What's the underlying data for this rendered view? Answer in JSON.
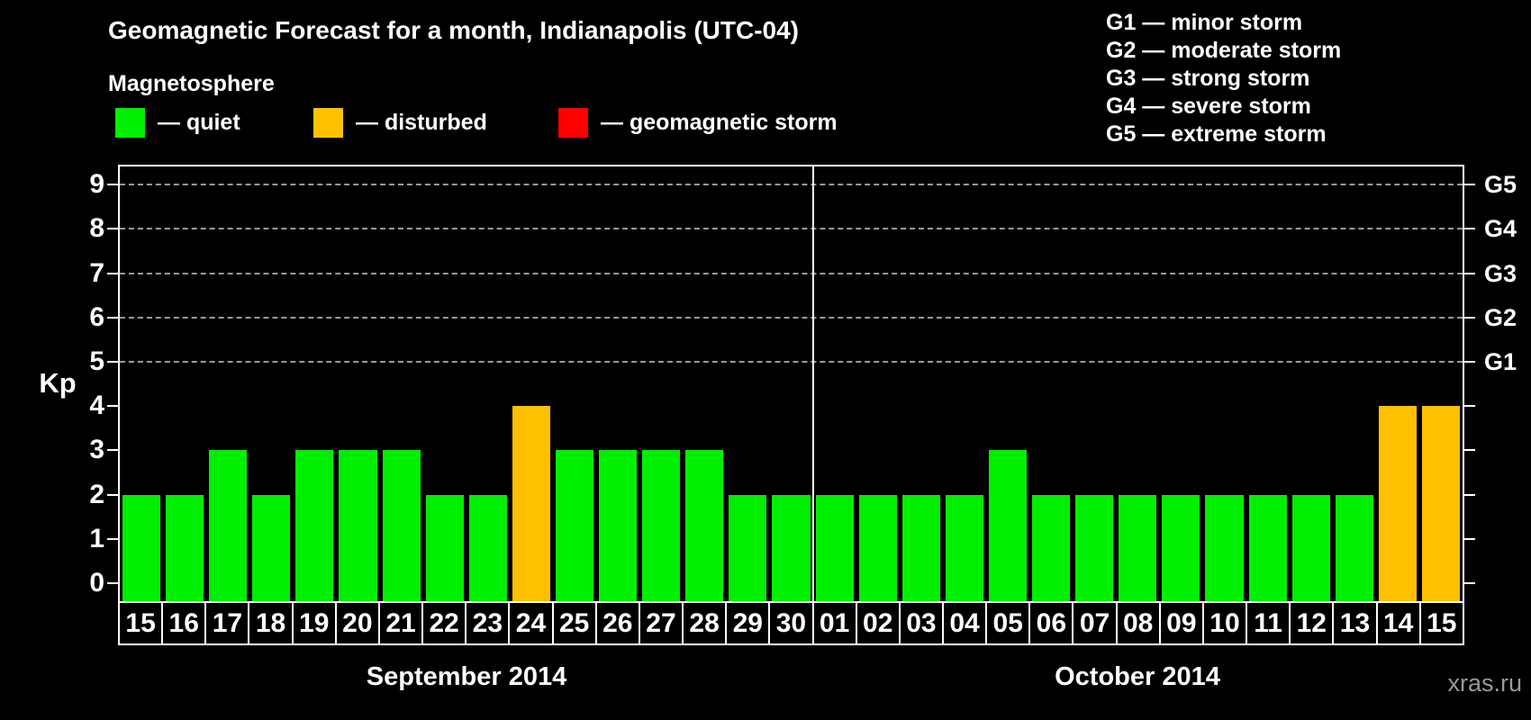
{
  "title": "Geomagnetic Forecast for a month, Indianapolis (UTC-04)",
  "subtitle": "Magnetosphere",
  "legend": {
    "items": [
      {
        "name": "quiet",
        "label": "— quiet",
        "color": "#00ef00"
      },
      {
        "name": "disturbed",
        "label": "— disturbed",
        "color": "#ffc000"
      },
      {
        "name": "storm",
        "label": "— geomagnetic storm",
        "color": "#ff0000"
      }
    ]
  },
  "g_legend": [
    "G1 — minor storm",
    "G2 — moderate storm",
    "G3 — strong storm",
    "G4 — severe storm",
    "G5 — extreme storm"
  ],
  "watermark": "xras.ru",
  "chart_data": {
    "type": "bar",
    "title": "Geomagnetic Forecast for a month, Indianapolis (UTC-04)",
    "xlabel": "",
    "ylabel": "Kp",
    "ylim": [
      -0.45,
      9.4
    ],
    "yticks": [
      0,
      1,
      2,
      3,
      4,
      5,
      6,
      7,
      8,
      9
    ],
    "gridlines_kp": [
      5,
      6,
      7,
      8,
      9
    ],
    "grid": "horizontal dashed lines at G-storm levels only",
    "legend_position": "top",
    "right_axis": [
      {
        "kp": 5,
        "label": "G1"
      },
      {
        "kp": 6,
        "label": "G2"
      },
      {
        "kp": 7,
        "label": "G3"
      },
      {
        "kp": 8,
        "label": "G4"
      },
      {
        "kp": 9,
        "label": "G5"
      }
    ],
    "months": [
      {
        "label": "September 2014",
        "days": [
          "15",
          "16",
          "17",
          "18",
          "19",
          "20",
          "21",
          "22",
          "23",
          "24",
          "25",
          "26",
          "27",
          "28",
          "29",
          "30"
        ]
      },
      {
        "label": "October 2014",
        "days": [
          "01",
          "02",
          "03",
          "04",
          "05",
          "06",
          "07",
          "08",
          "09",
          "10",
          "11",
          "12",
          "13",
          "14",
          "15"
        ]
      }
    ],
    "categories": [
      "15",
      "16",
      "17",
      "18",
      "19",
      "20",
      "21",
      "22",
      "23",
      "24",
      "25",
      "26",
      "27",
      "28",
      "29",
      "30",
      "01",
      "02",
      "03",
      "04",
      "05",
      "06",
      "07",
      "08",
      "09",
      "10",
      "11",
      "12",
      "13",
      "14",
      "15"
    ],
    "values": [
      2,
      2,
      3,
      2,
      3,
      3,
      3,
      2,
      2,
      4,
      3,
      3,
      3,
      3,
      2,
      2,
      2,
      2,
      2,
      2,
      3,
      2,
      2,
      2,
      2,
      2,
      2,
      2,
      2,
      4,
      4
    ],
    "statuses": [
      "quiet",
      "quiet",
      "quiet",
      "quiet",
      "quiet",
      "quiet",
      "quiet",
      "quiet",
      "quiet",
      "disturbed",
      "quiet",
      "quiet",
      "quiet",
      "quiet",
      "quiet",
      "quiet",
      "quiet",
      "quiet",
      "quiet",
      "quiet",
      "quiet",
      "quiet",
      "quiet",
      "quiet",
      "quiet",
      "quiet",
      "quiet",
      "quiet",
      "quiet",
      "disturbed",
      "disturbed"
    ],
    "status_colors": {
      "quiet": "#00ef00",
      "disturbed": "#ffc000",
      "storm": "#ff0000"
    }
  }
}
